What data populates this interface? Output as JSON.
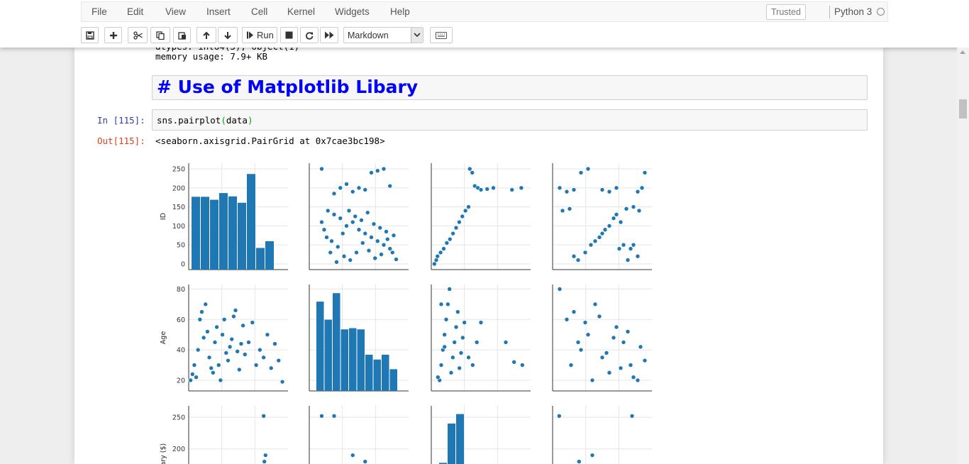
{
  "menu": {
    "file": "File",
    "edit": "Edit",
    "view": "View",
    "insert": "Insert",
    "cell": "Cell",
    "kernel": "Kernel",
    "widgets": "Widgets",
    "help": "Help"
  },
  "status": {
    "trusted": "Trusted",
    "kernel_name": "Python 3"
  },
  "toolbar": {
    "run_label": "Run",
    "cell_type": "Markdown"
  },
  "cells": {
    "memory_line": "memory usage: 7.9+ KB",
    "heading": "# Use of Matplotlib Libary",
    "in_prompt": "In [115]:",
    "code_prefix": "sns.pairplot",
    "code_open": "(",
    "code_arg": "data",
    "code_close": ")",
    "out_prompt": "Out[115]:",
    "output_text": "<seaborn.axisgrid.PairGrid at 0x7cae3bc198>"
  },
  "colors": {
    "point": "#1f77b4",
    "heading": "#0000ff",
    "in_prompt": "#303f9f",
    "out_prompt": "#d84315"
  },
  "chart_data": {
    "type": "scatter",
    "variables": [
      "ID",
      "Age",
      "Salary ($)"
    ],
    "ylabels": [
      "ID",
      "Age",
      "lary ($)"
    ],
    "axes": {
      "ID": {
        "ticks": [
          0,
          50,
          100,
          150,
          200,
          250
        ],
        "range": [
          -15,
          265
        ]
      },
      "Age": {
        "ticks": [
          20,
          40,
          60,
          80
        ],
        "range": [
          13,
          83
        ]
      },
      "Salary ($)": {
        "ticks": [
          150,
          200,
          250
        ],
        "range": [
          100,
          268
        ]
      }
    },
    "histograms": {
      "ID": [
        195,
        195,
        187,
        205,
        196,
        179,
        256,
        58,
        76
      ],
      "Age": [
        74,
        59,
        81,
        51,
        52,
        51,
        30,
        26,
        30,
        18
      ]
    },
    "salary_histogram": [
      178,
      240,
      255
    ],
    "scatter": {
      "r0c1": {
        "label": "ID vs Age",
        "points": [
          [
            20,
            250
          ],
          [
            30,
            185
          ],
          [
            35,
            200
          ],
          [
            40,
            210
          ],
          [
            45,
            190
          ],
          [
            50,
            200
          ],
          [
            55,
            195
          ],
          [
            60,
            240
          ],
          [
            65,
            245
          ],
          [
            70,
            250
          ],
          [
            75,
            205
          ],
          [
            25,
            140
          ],
          [
            30,
            130
          ],
          [
            35,
            120
          ],
          [
            40,
            100
          ],
          [
            45,
            110
          ],
          [
            50,
            90
          ],
          [
            55,
            80
          ],
          [
            60,
            70
          ],
          [
            65,
            60
          ],
          [
            70,
            50
          ],
          [
            75,
            40
          ],
          [
            28,
            60
          ],
          [
            33,
            45
          ],
          [
            38,
            20
          ],
          [
            43,
            10
          ],
          [
            48,
            30
          ],
          [
            53,
            55
          ],
          [
            58,
            35
          ],
          [
            63,
            15
          ],
          [
            68,
            25
          ],
          [
            73,
            65
          ],
          [
            78,
            75
          ],
          [
            22,
            90
          ],
          [
            27,
            30
          ],
          [
            32,
            5
          ],
          [
            37,
            80
          ],
          [
            42,
            140
          ],
          [
            47,
            125
          ],
          [
            52,
            115
          ],
          [
            57,
            135
          ],
          [
            62,
            105
          ],
          [
            67,
            95
          ],
          [
            72,
            85
          ],
          [
            77,
            30
          ],
          [
            80,
            12
          ],
          [
            20,
            110
          ],
          [
            24,
            70
          ]
        ]
      },
      "r0c2": {
        "label": "ID vs Salary",
        "points": [
          [
            115,
            0
          ],
          [
            118,
            10
          ],
          [
            120,
            20
          ],
          [
            125,
            30
          ],
          [
            130,
            40
          ],
          [
            135,
            55
          ],
          [
            140,
            65
          ],
          [
            145,
            80
          ],
          [
            150,
            95
          ],
          [
            155,
            110
          ],
          [
            160,
            125
          ],
          [
            165,
            140
          ],
          [
            170,
            150
          ],
          [
            172,
            250
          ],
          [
            176,
            240
          ],
          [
            180,
            205
          ],
          [
            185,
            200
          ],
          [
            190,
            195
          ],
          [
            200,
            197
          ],
          [
            210,
            200
          ],
          [
            240,
            195
          ],
          [
            255,
            200
          ]
        ]
      },
      "r0c3": {
        "label": "ID vs Age",
        "points": [
          [
            20,
            200
          ],
          [
            25,
            190
          ],
          [
            30,
            195
          ],
          [
            35,
            240
          ],
          [
            40,
            250
          ],
          [
            50,
            195
          ],
          [
            55,
            190
          ],
          [
            60,
            200
          ],
          [
            65,
            50
          ],
          [
            70,
            40
          ],
          [
            22,
            140
          ],
          [
            27,
            145
          ],
          [
            30,
            20
          ],
          [
            33,
            10
          ],
          [
            38,
            30
          ],
          [
            42,
            50
          ],
          [
            45,
            60
          ],
          [
            48,
            70
          ],
          [
            50,
            80
          ],
          [
            52,
            90
          ],
          [
            55,
            100
          ],
          [
            58,
            120
          ],
          [
            60,
            130
          ],
          [
            63,
            110
          ],
          [
            67,
            145
          ],
          [
            72,
            150
          ],
          [
            76,
            140
          ],
          [
            78,
            200
          ],
          [
            80,
            240
          ],
          [
            75,
            190
          ],
          [
            72,
            50
          ],
          [
            75,
            20
          ],
          [
            68,
            10
          ],
          [
            62,
            40
          ]
        ]
      },
      "r1c0": {
        "label": "Age vs ID",
        "points": [
          [
            5,
            20
          ],
          [
            10,
            24
          ],
          [
            15,
            30
          ],
          [
            20,
            22
          ],
          [
            25,
            40
          ],
          [
            30,
            60
          ],
          [
            35,
            65
          ],
          [
            40,
            48
          ],
          [
            45,
            70
          ],
          [
            50,
            52
          ],
          [
            55,
            35
          ],
          [
            60,
            28
          ],
          [
            65,
            25
          ],
          [
            70,
            45
          ],
          [
            75,
            55
          ],
          [
            80,
            30
          ],
          [
            85,
            20
          ],
          [
            90,
            50
          ],
          [
            95,
            60
          ],
          [
            100,
            38
          ],
          [
            105,
            33
          ],
          [
            110,
            42
          ],
          [
            115,
            47
          ],
          [
            120,
            62
          ],
          [
            125,
            66
          ],
          [
            130,
            39
          ],
          [
            135,
            27
          ],
          [
            140,
            44
          ],
          [
            145,
            56
          ],
          [
            150,
            37
          ],
          [
            160,
            45
          ],
          [
            170,
            58
          ],
          [
            180,
            30
          ],
          [
            190,
            40
          ],
          [
            200,
            35
          ],
          [
            210,
            50
          ],
          [
            220,
            28
          ],
          [
            230,
            44
          ],
          [
            240,
            33
          ],
          [
            250,
            19
          ]
        ]
      },
      "r1c2": {
        "label": "Salary vs Age",
        "points": [
          [
            120,
            20
          ],
          [
            122,
            30
          ],
          [
            124,
            40
          ],
          [
            126,
            50
          ],
          [
            128,
            60
          ],
          [
            130,
            70
          ],
          [
            132,
            80
          ],
          [
            134,
            25
          ],
          [
            136,
            35
          ],
          [
            138,
            45
          ],
          [
            140,
            55
          ],
          [
            142,
            65
          ],
          [
            144,
            28
          ],
          [
            146,
            38
          ],
          [
            148,
            48
          ],
          [
            150,
            58
          ],
          [
            155,
            35
          ],
          [
            160,
            30
          ],
          [
            165,
            45
          ],
          [
            170,
            58
          ],
          [
            200,
            45
          ],
          [
            210,
            32
          ],
          [
            220,
            30
          ],
          [
            118,
            22
          ],
          [
            122,
            70
          ],
          [
            126,
            42
          ]
        ]
      },
      "r1c3": {
        "label": "Age vs Age",
        "points": [
          [
            20,
            80
          ],
          [
            25,
            60
          ],
          [
            30,
            65
          ],
          [
            35,
            40
          ],
          [
            40,
            50
          ],
          [
            45,
            70
          ],
          [
            50,
            35
          ],
          [
            55,
            25
          ],
          [
            60,
            55
          ],
          [
            65,
            45
          ],
          [
            70,
            30
          ],
          [
            75,
            20
          ],
          [
            28,
            30
          ],
          [
            33,
            45
          ],
          [
            38,
            58
          ],
          [
            43,
            20
          ],
          [
            48,
            62
          ],
          [
            53,
            38
          ],
          [
            58,
            48
          ],
          [
            63,
            28
          ],
          [
            68,
            52
          ],
          [
            72,
            22
          ],
          [
            77,
            42
          ],
          [
            80,
            33
          ]
        ]
      },
      "r2c0": {
        "label": "ID vs Salary",
        "points": [
          [
            200,
            252
          ],
          [
            205,
            190
          ],
          [
            202,
            180
          ],
          [
            198,
            140
          ],
          [
            203,
            135
          ],
          [
            195,
            120
          ]
        ]
      },
      "r2c1": {
        "label": "Age vs Salary",
        "points": [
          [
            20,
            252
          ],
          [
            30,
            252
          ],
          [
            45,
            190
          ],
          [
            55,
            180
          ],
          [
            60,
            125
          ],
          [
            35,
            135
          ],
          [
            40,
            132
          ]
        ]
      },
      "r2c3": {
        "label": "Age vs Salary",
        "points": [
          [
            15,
            252
          ],
          [
            30,
            180
          ],
          [
            40,
            190
          ],
          [
            60,
            125
          ],
          [
            70,
            252
          ],
          [
            75,
            135
          ],
          [
            80,
            132
          ]
        ]
      }
    }
  }
}
